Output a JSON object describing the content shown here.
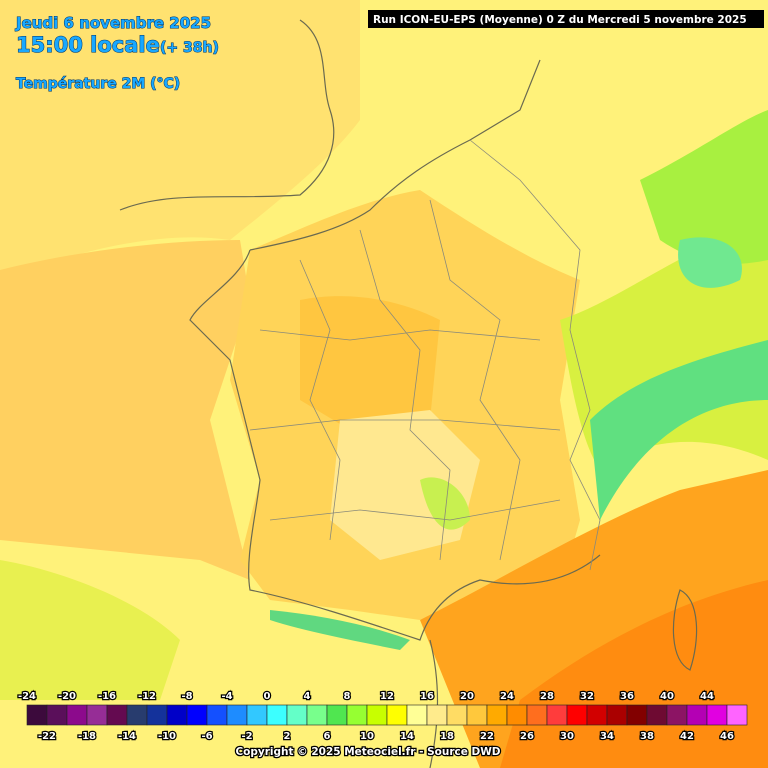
{
  "header": {
    "date": "Jeudi 6 novembre 2025",
    "time": "15:00 locale",
    "lead": "(+ 38h)",
    "variable": "Température 2M (°C)",
    "run": "Run ICON-EU-EPS (Moyenne) 0 Z du Mercredi 5 novembre 2025"
  },
  "legend": {
    "ticks": [
      -24,
      -22,
      -20,
      -18,
      -16,
      -14,
      -12,
      -10,
      -8,
      -6,
      -4,
      -2,
      0,
      2,
      4,
      6,
      8,
      10,
      12,
      14,
      16,
      18,
      20,
      22,
      24,
      26,
      28,
      30,
      32,
      34,
      36,
      38,
      40,
      42,
      44,
      46
    ],
    "colors": [
      "#3c0a3c",
      "#5a0f5a",
      "#8c0a8c",
      "#962d96",
      "#640a50",
      "#283c6e",
      "#14329b",
      "#0000c8",
      "#0000ff",
      "#1450ff",
      "#1e8cff",
      "#32c8ff",
      "#3cffff",
      "#64ffc8",
      "#78ff8c",
      "#50e650",
      "#96ff32",
      "#c8ff00",
      "#ffff00",
      "#ffff96",
      "#ffeb8c",
      "#ffdc64",
      "#ffc83c",
      "#ffaa00",
      "#ff8c00",
      "#ff6e1e",
      "#ff3c3c",
      "#ff0000",
      "#d20000",
      "#aa0000",
      "#820000",
      "#6e0a32",
      "#8c1464",
      "#b400b4",
      "#e100e1",
      "#ff64ff"
    ]
  },
  "footer": {
    "copyright": "Copyright © 2025 Meteociel.fr - Source DWD"
  }
}
